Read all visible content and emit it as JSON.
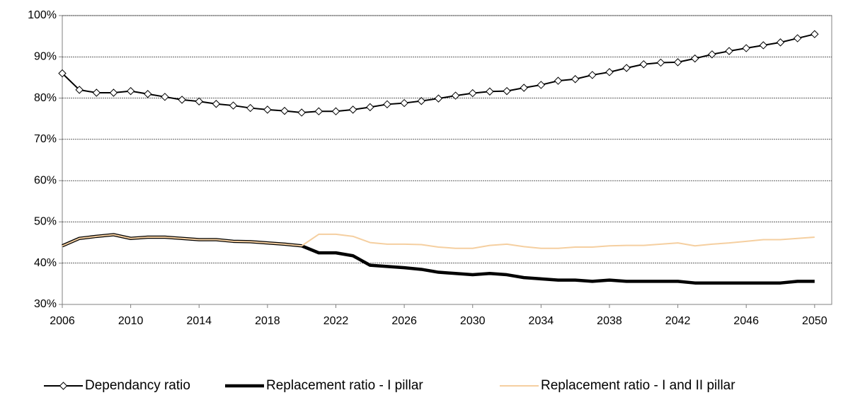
{
  "chart_data": {
    "type": "line",
    "x": [
      2006,
      2007,
      2008,
      2009,
      2010,
      2011,
      2012,
      2013,
      2014,
      2015,
      2016,
      2017,
      2018,
      2019,
      2020,
      2021,
      2022,
      2023,
      2024,
      2025,
      2026,
      2027,
      2028,
      2029,
      2030,
      2031,
      2032,
      2033,
      2034,
      2035,
      2036,
      2037,
      2038,
      2039,
      2040,
      2041,
      2042,
      2043,
      2044,
      2045,
      2046,
      2047,
      2048,
      2049,
      2050
    ],
    "series": [
      {
        "name": "Dependancy ratio",
        "color": "#000000",
        "marker": "diamond",
        "values": [
          86,
          82,
          81.3,
          81.3,
          81.7,
          81,
          80.3,
          79.6,
          79.2,
          78.6,
          78.2,
          77.6,
          77.2,
          76.9,
          76.5,
          76.8,
          76.8,
          77.2,
          77.8,
          78.5,
          78.8,
          79.3,
          79.9,
          80.6,
          81.2,
          81.6,
          81.7,
          82.5,
          83.2,
          84.2,
          84.6,
          85.6,
          86.3,
          87.3,
          88.2,
          88.6,
          88.7,
          89.6,
          90.6,
          91.4,
          92.1,
          92.8,
          93.5,
          94.5,
          95.5
        ]
      },
      {
        "name": "Replacement ratio - I pillar",
        "color": "#000000",
        "values": [
          44.2,
          46,
          46.5,
          46.9,
          46,
          46.3,
          46.3,
          46,
          45.7,
          45.7,
          45.3,
          45.2,
          44.9,
          44.6,
          44.2,
          42.5,
          42.5,
          41.8,
          39.5,
          39.2,
          38.9,
          38.5,
          37.8,
          37.5,
          37.2,
          37.5,
          37.2,
          36.5,
          36.2,
          35.9,
          35.9,
          35.6,
          35.9,
          35.6,
          35.6,
          35.6,
          35.6,
          35.2,
          35.2,
          35.2,
          35.2,
          35.2,
          35.2,
          35.6,
          35.6
        ]
      },
      {
        "name": "Replacement ratio - I and II pillar",
        "color": "#f5cfa0",
        "values": [
          44.2,
          46,
          46.5,
          46.9,
          46,
          46.3,
          46.3,
          46,
          45.7,
          45.7,
          45.3,
          45.2,
          44.9,
          44.6,
          44.2,
          47,
          47,
          46.5,
          45,
          44.6,
          44.6,
          44.5,
          43.9,
          43.6,
          43.6,
          44.3,
          44.6,
          44,
          43.6,
          43.6,
          43.9,
          43.9,
          44.2,
          44.3,
          44.3,
          44.6,
          44.9,
          44.2,
          44.6,
          44.9,
          45.3,
          45.7,
          45.7,
          46,
          46.3
        ]
      }
    ],
    "xlim": [
      2006,
      2051
    ],
    "xticks": [
      2006,
      2010,
      2014,
      2018,
      2022,
      2026,
      2030,
      2034,
      2038,
      2042,
      2046,
      2050
    ],
    "ylim": [
      30,
      100
    ],
    "yticks": [
      {
        "value": 30,
        "label": "30%"
      },
      {
        "value": 40,
        "label": "40%"
      },
      {
        "value": 50,
        "label": "50%"
      },
      {
        "value": 60,
        "label": "60%"
      },
      {
        "value": 70,
        "label": "70%"
      },
      {
        "value": 80,
        "label": "80%"
      },
      {
        "value": 90,
        "label": "90%"
      },
      {
        "value": 100,
        "label": "100%"
      }
    ],
    "grid": true,
    "legend": "bottom"
  }
}
